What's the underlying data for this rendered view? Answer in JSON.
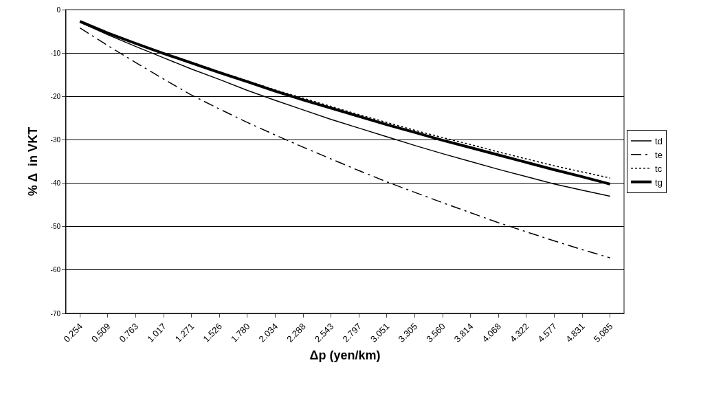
{
  "chart_data": {
    "type": "line",
    "xlabel": "Δp (yen/km)",
    "ylabel": "% Δ  in VKT",
    "categories": [
      "0.254",
      "0.509",
      "0.763",
      "1.017",
      "1.271",
      "1.526",
      "1.780",
      "2.034",
      "2.288",
      "2.543",
      "2.797",
      "3.051",
      "3.305",
      "3.560",
      "3.814",
      "4.068",
      "4.322",
      "4.577",
      "4.831",
      "5.085"
    ],
    "series": [
      {
        "name": "td",
        "color": "#000000",
        "line_style": "solid",
        "values": [
          -2.9,
          -5.8,
          -8.5,
          -11.1,
          -13.7,
          -16.1,
          -18.6,
          -20.9,
          -23.1,
          -25.3,
          -27.3,
          -29.3,
          -31.3,
          -33.2,
          -35.0,
          -36.8,
          -38.5,
          -40.2,
          -41.6,
          -43.0
        ]
      },
      {
        "name": "te",
        "color": "#000000",
        "line_style": "dashdot",
        "values": [
          -4.2,
          -8.3,
          -12.2,
          -16.0,
          -19.7,
          -22.9,
          -26.0,
          -28.9,
          -31.7,
          -34.4,
          -37.1,
          -39.7,
          -42.1,
          -44.5,
          -46.8,
          -49.1,
          -51.2,
          -53.3,
          -55.3,
          -57.2
        ]
      },
      {
        "name": "tc",
        "color": "#000000",
        "line_style": "dotted",
        "values": [
          -2.7,
          -5.3,
          -7.7,
          -10.0,
          -12.1,
          -14.3,
          -16.4,
          -18.5,
          -20.4,
          -22.3,
          -24.2,
          -26.0,
          -27.8,
          -29.5,
          -31.1,
          -32.8,
          -34.4,
          -36.0,
          -37.4,
          -38.8
        ]
      },
      {
        "name": "tg",
        "color": "#000000",
        "line_style": "solid",
        "values": [
          -2.7,
          -5.4,
          -7.8,
          -10.1,
          -12.3,
          -14.5,
          -16.6,
          -18.8,
          -20.8,
          -22.7,
          -24.6,
          -26.5,
          -28.3,
          -30.1,
          -31.8,
          -33.5,
          -35.2,
          -36.9,
          -38.5,
          -40.2
        ]
      }
    ],
    "ylim": [
      -70,
      0
    ],
    "yticks": [
      -70,
      -60,
      -50,
      -40,
      -30,
      -20,
      -10,
      0
    ],
    "grid": "y",
    "legend": "right",
    "marker": "none"
  }
}
